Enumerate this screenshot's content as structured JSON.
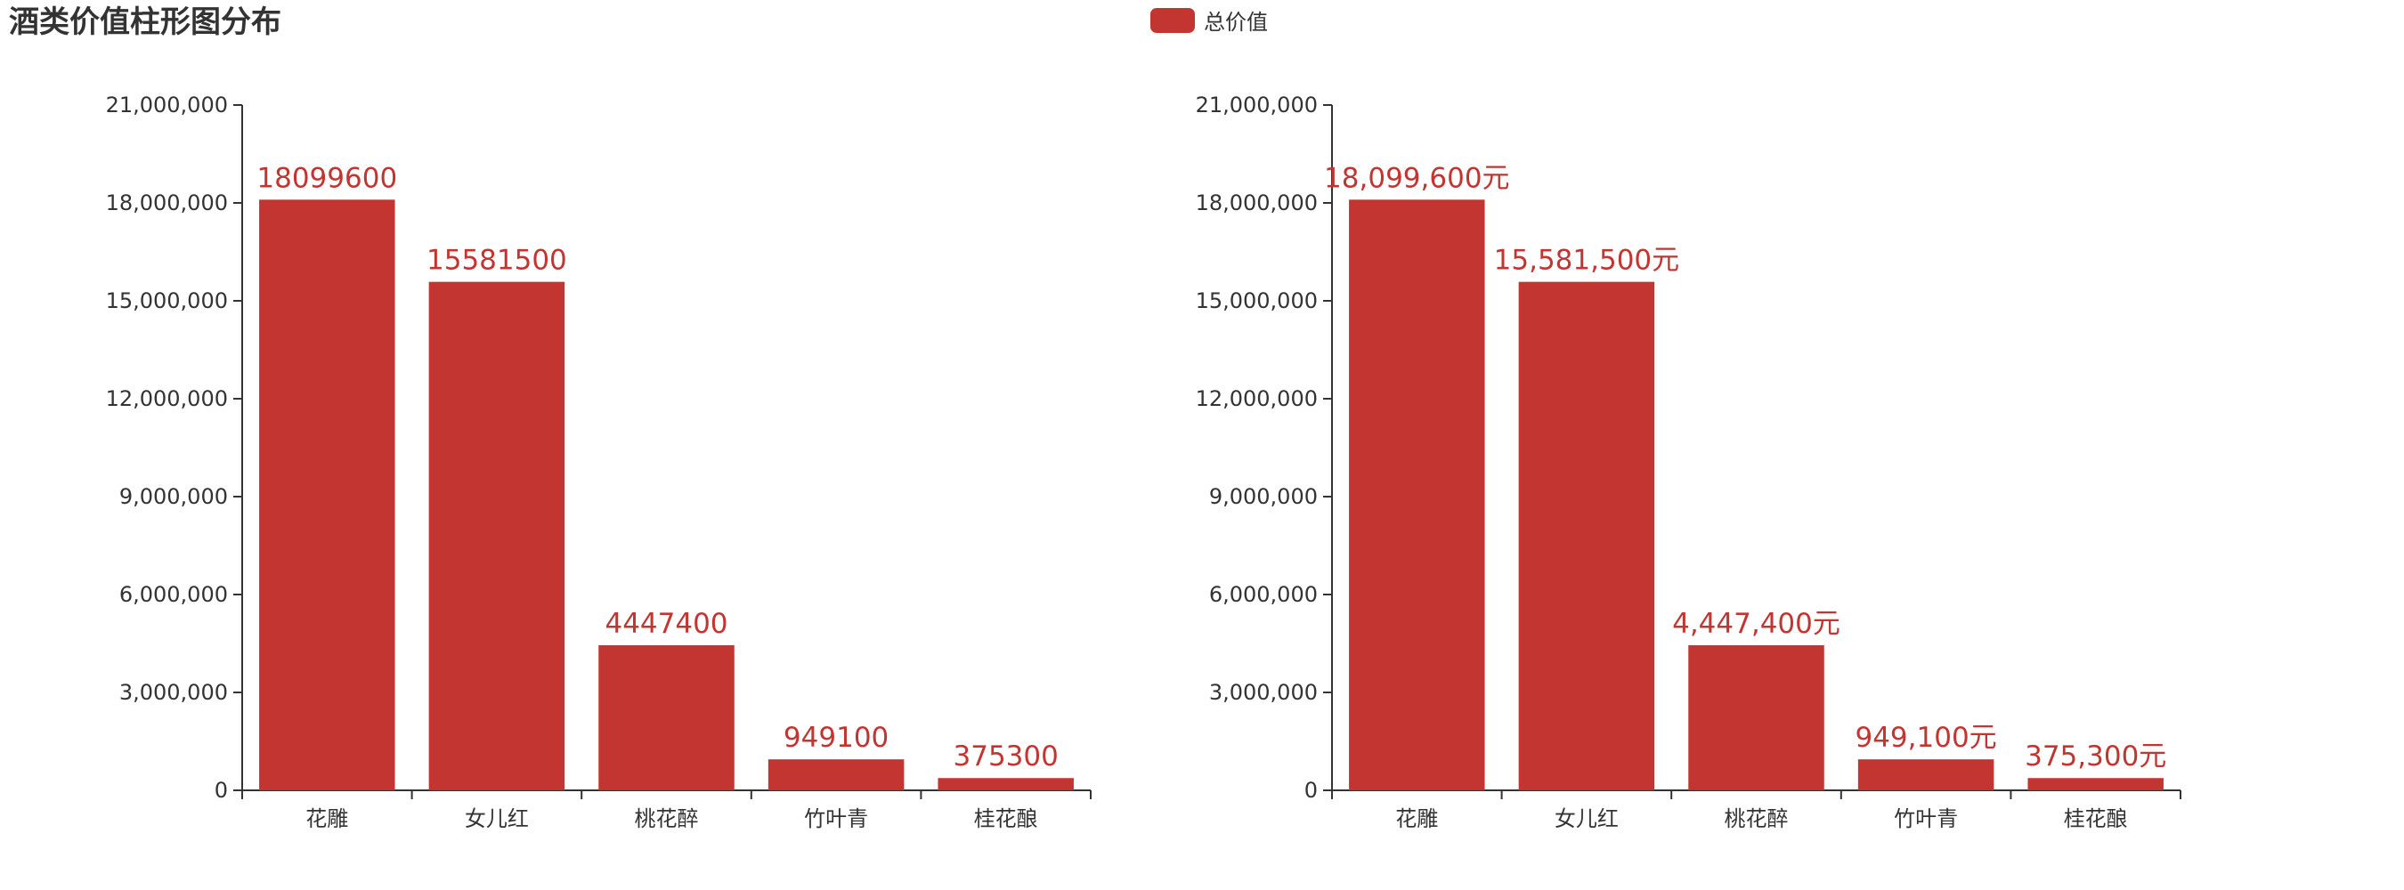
{
  "title": "酒类价值柱形图分布",
  "legend": {
    "label": "总价值",
    "color": "#c23531",
    "position": "top-center"
  },
  "chart_data": [
    {
      "type": "bar",
      "categories": [
        "花雕",
        "女儿红",
        "桃花醉",
        "竹叶青",
        "桂花酿"
      ],
      "series": [
        {
          "name": "总价值",
          "values": [
            18099600,
            15581500,
            4447400,
            949100,
            375300
          ]
        }
      ],
      "y_ticks": [
        "0",
        "3,000,000",
        "6,000,000",
        "9,000,000",
        "12,000,000",
        "15,000,000",
        "18,000,000",
        "21,000,000"
      ],
      "ylim": [
        0,
        21000000
      ],
      "data_labels": [
        "18099600",
        "15581500",
        "4447400",
        "949100",
        "375300"
      ],
      "grid": false
    },
    {
      "type": "bar",
      "categories": [
        "花雕",
        "女儿红",
        "桃花醉",
        "竹叶青",
        "桂花酿"
      ],
      "series": [
        {
          "name": "总价值",
          "values": [
            18099600,
            15581500,
            4447400,
            949100,
            375300
          ]
        }
      ],
      "y_ticks": [
        "0",
        "3,000,000",
        "6,000,000",
        "9,000,000",
        "12,000,000",
        "15,000,000",
        "18,000,000",
        "21,000,000"
      ],
      "ylim": [
        0,
        21000000
      ],
      "data_labels": [
        "18,099,600元",
        "15,581,500元",
        "4,447,400元",
        "949,100元",
        "375,300元"
      ],
      "grid": false
    }
  ]
}
